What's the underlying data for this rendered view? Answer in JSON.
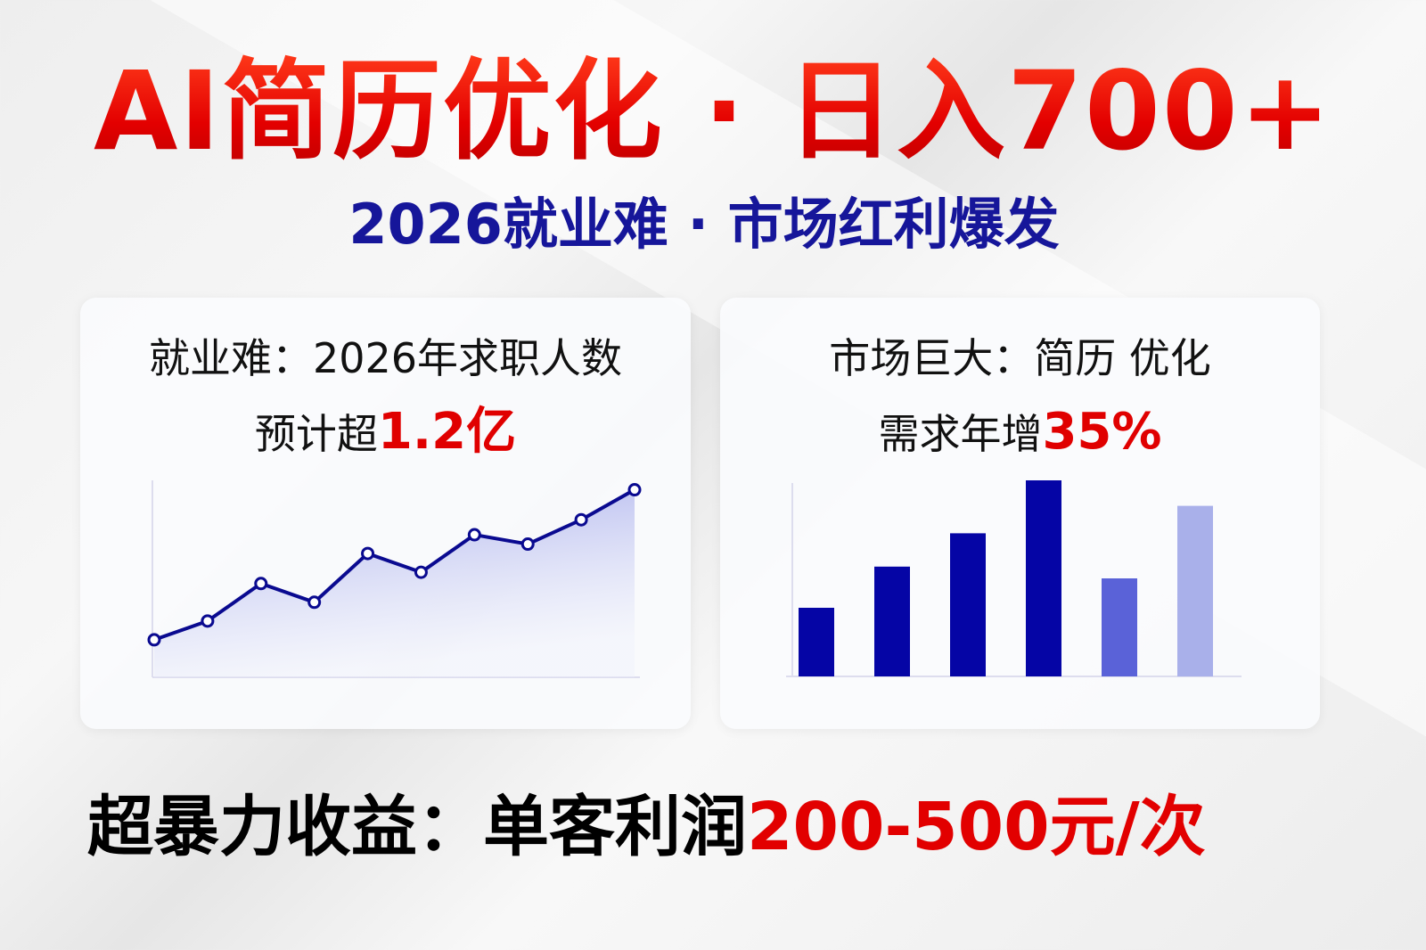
{
  "title": "AI简历优化 · 日入700+",
  "subtitle": "2026就业难 · 市场红利爆发",
  "left_card": {
    "line1": "就业难：2026年求职人数",
    "line2_prefix": "预计超",
    "line2_highlight": "1.2亿"
  },
  "right_card": {
    "line1": "市场巨大：简历 优化",
    "line2_prefix": "需求年增",
    "line2_highlight": "35%"
  },
  "bottom": {
    "prefix": "超暴力收益：单客利润",
    "highlight": "200-500元/次"
  },
  "colors": {
    "title_red": "#e30000",
    "subtitle_blue": "#16169a",
    "chart_blue": "#0a0aa8",
    "highlight_red": "#e00000"
  },
  "chart_data": [
    {
      "type": "area",
      "values": [
        20,
        30,
        50,
        40,
        66,
        56,
        76,
        71,
        84,
        100
      ],
      "ylim": [
        0,
        105
      ],
      "grid": false,
      "note_scale": "relative"
    },
    {
      "type": "bar",
      "values": [
        35,
        56,
        73,
        100,
        50,
        87
      ],
      "ylim": [
        0,
        100
      ],
      "grid": false,
      "bar_colors": [
        "#0505a5",
        "#0505a5",
        "#0505a5",
        "#0505a5",
        "#5a62d8",
        "#a9b0ea"
      ]
    }
  ]
}
